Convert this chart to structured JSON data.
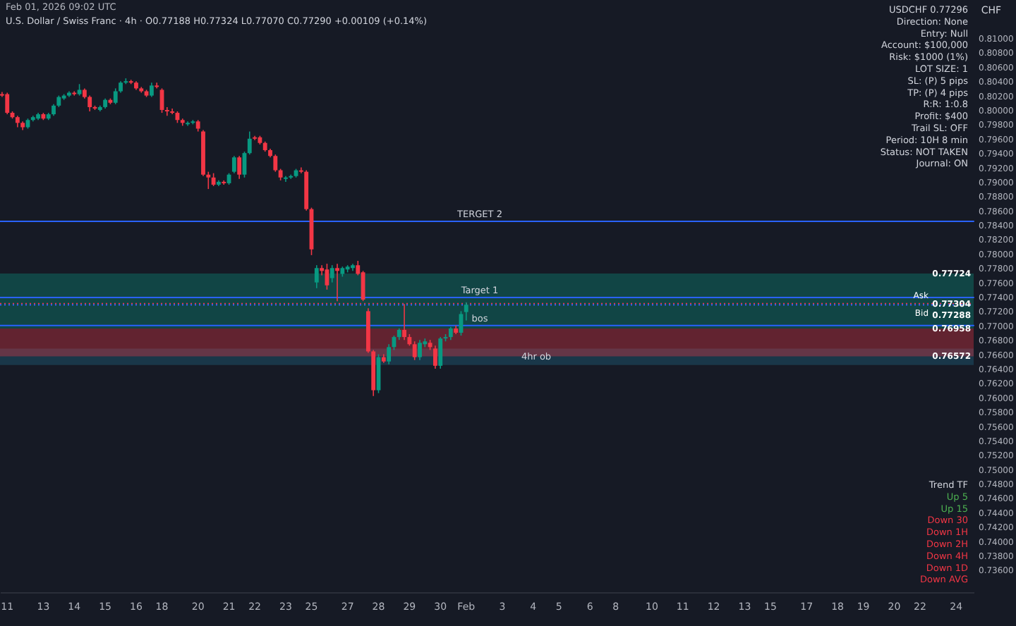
{
  "chart_data": {
    "type": "candlestick",
    "title": "U.S. Dollar / Swiss Franc · 4h · O0.77188 H0.77324 L0.77070 C0.77290 +0.00109 (+0.14%)",
    "ylabel": "CHF",
    "categories": [
      null,
      "11",
      null,
      null,
      null,
      null,
      null,
      null,
      "13",
      null,
      null,
      null,
      null,
      null,
      "14",
      null,
      null,
      null,
      null,
      null,
      "15",
      null,
      null,
      null,
      null,
      null,
      "16",
      null,
      null,
      null,
      null,
      "18",
      null,
      null,
      null,
      null,
      null,
      null,
      "20",
      null,
      null,
      null,
      null,
      null,
      "21",
      null,
      null,
      null,
      null,
      "22",
      null,
      null,
      null,
      null,
      null,
      "23",
      null,
      null,
      null,
      null,
      "25",
      null,
      null,
      null,
      null,
      null,
      null,
      "27",
      null,
      null,
      null,
      null,
      null,
      "28",
      null,
      null,
      null,
      null,
      null,
      "29",
      null,
      null,
      null,
      null,
      null,
      "30",
      null,
      null,
      null,
      null,
      "Feb",
      null,
      null,
      null,
      null,
      null,
      null,
      "3",
      null,
      null,
      null,
      null,
      null,
      "4",
      null,
      null,
      null,
      null,
      "5",
      null,
      null,
      null,
      null,
      null,
      "6",
      null,
      null,
      null,
      null,
      "8",
      null,
      null,
      null,
      null,
      null,
      null,
      "10",
      null,
      null,
      null,
      null,
      null,
      "11",
      null,
      null,
      null,
      null,
      null,
      "12",
      null,
      null,
      null,
      null,
      null,
      "13",
      null,
      null,
      null,
      null,
      "15",
      null,
      null,
      null,
      null,
      null,
      null,
      "17",
      null,
      null,
      null,
      null,
      null,
      "18",
      null,
      null,
      null,
      null,
      "19",
      null,
      null,
      null,
      null,
      null,
      "20",
      null,
      null,
      null,
      null,
      "22",
      null,
      null,
      null,
      null,
      null,
      null,
      "24",
      null,
      null,
      null
    ],
    "ohlc": [
      [
        0.8022,
        0.8025,
        0.8018,
        0.802
      ],
      [
        0.8022,
        0.8024,
        0.7994,
        0.7996
      ],
      [
        0.7996,
        0.7998,
        0.7988,
        0.799
      ],
      [
        0.799,
        0.7992,
        0.7976,
        0.7982
      ],
      [
        0.7982,
        0.7984,
        0.7972,
        0.7976
      ],
      [
        0.7976,
        0.7988,
        0.7974,
        0.7986
      ],
      [
        0.7986,
        0.7992,
        0.7984,
        0.799
      ],
      [
        0.7988,
        0.7996,
        0.7986,
        0.7994
      ],
      [
        0.7994,
        0.7996,
        0.7986,
        0.7988
      ],
      [
        0.7988,
        0.7996,
        0.7986,
        0.7994
      ],
      [
        0.7994,
        0.8008,
        0.7992,
        0.8006
      ],
      [
        0.8006,
        0.802,
        0.8004,
        0.8018
      ],
      [
        0.8016,
        0.8022,
        0.8014,
        0.802
      ],
      [
        0.802,
        0.8026,
        0.8018,
        0.8024
      ],
      [
        0.8024,
        0.8026,
        0.802,
        0.8022
      ],
      [
        0.8022,
        0.8036,
        0.802,
        0.8028
      ],
      [
        0.8028,
        0.803,
        0.8016,
        0.8018
      ],
      [
        0.8018,
        0.802,
        0.7998,
        0.8004
      ],
      [
        0.8004,
        0.8006,
        0.8,
        0.8002
      ],
      [
        0.8,
        0.8006,
        0.7998,
        0.8004
      ],
      [
        0.8004,
        0.8016,
        0.8002,
        0.8014
      ],
      [
        0.8014,
        0.8016,
        0.8008,
        0.801
      ],
      [
        0.801,
        0.803,
        0.8008,
        0.8026
      ],
      [
        0.8026,
        0.804,
        0.8024,
        0.8038
      ],
      [
        0.8038,
        0.8044,
        0.8036,
        0.804
      ],
      [
        0.804,
        0.8042,
        0.8036,
        0.8038
      ],
      [
        0.8038,
        0.804,
        0.8028,
        0.803
      ],
      [
        0.803,
        0.8032,
        0.8024,
        0.8026
      ],
      [
        0.8026,
        0.8028,
        0.8018,
        0.802
      ],
      [
        0.802,
        0.8038,
        0.8018,
        0.8034
      ],
      [
        0.8034,
        0.8038,
        0.803,
        0.8032
      ],
      [
        0.8028,
        0.803,
        0.7996,
        0.8
      ],
      [
        0.8,
        0.8004,
        0.7992,
        0.7998
      ],
      [
        0.7998,
        0.8002,
        0.7994,
        0.7996
      ],
      [
        0.7996,
        0.7998,
        0.7982,
        0.7986
      ],
      [
        0.7986,
        0.7988,
        0.7978,
        0.7982
      ],
      [
        0.798,
        0.7984,
        0.7978,
        0.7982
      ],
      [
        0.7982,
        0.7986,
        0.798,
        0.7984
      ],
      [
        0.7984,
        0.7986,
        0.797,
        0.7974
      ],
      [
        0.797,
        0.7972,
        0.7908,
        0.791
      ],
      [
        0.791,
        0.7914,
        0.789,
        0.7906
      ],
      [
        0.7906,
        0.7912,
        0.7894,
        0.7896
      ],
      [
        0.7896,
        0.7902,
        0.7894,
        0.79
      ],
      [
        0.79,
        0.7902,
        0.7896,
        0.7898
      ],
      [
        0.7898,
        0.7912,
        0.7896,
        0.791
      ],
      [
        0.7914,
        0.7936,
        0.7912,
        0.7934
      ],
      [
        0.7934,
        0.7936,
        0.7904,
        0.791
      ],
      [
        0.791,
        0.7942,
        0.7906,
        0.794
      ],
      [
        0.794,
        0.797,
        0.7938,
        0.796
      ],
      [
        0.7962,
        0.7964,
        0.7958,
        0.796
      ],
      [
        0.7962,
        0.7964,
        0.7952,
        0.7954
      ],
      [
        0.7954,
        0.7956,
        0.7942,
        0.7944
      ],
      [
        0.7944,
        0.7946,
        0.7934,
        0.7936
      ],
      [
        0.7936,
        0.7938,
        0.7914,
        0.7916
      ],
      [
        0.7916,
        0.7918,
        0.7902,
        0.7906
      ],
      [
        0.7904,
        0.7908,
        0.79,
        0.7906
      ],
      [
        0.7906,
        0.791,
        0.7904,
        0.7908
      ],
      [
        0.7908,
        0.7918,
        0.7906,
        0.7916
      ],
      [
        0.7916,
        0.792,
        0.7912,
        0.7914
      ],
      [
        0.7914,
        0.7916,
        0.786,
        0.7862
      ],
      [
        0.7862,
        0.7864,
        0.7798,
        0.7806
      ],
      [
        0.776,
        0.7784,
        0.7752,
        0.778
      ],
      [
        0.778,
        0.7784,
        0.777,
        0.7776
      ],
      [
        0.7778,
        0.7786,
        0.775,
        0.7756
      ],
      [
        0.7766,
        0.7784,
        0.776,
        0.778
      ],
      [
        0.778,
        0.7786,
        0.7734,
        0.7776
      ],
      [
        0.7772,
        0.7782,
        0.7768,
        0.778
      ],
      [
        0.7778,
        0.7784,
        0.7774,
        0.7782
      ],
      [
        0.778,
        0.7786,
        0.7776,
        0.7784
      ],
      [
        0.7784,
        0.779,
        0.777,
        0.7772
      ],
      [
        0.7774,
        0.7776,
        0.7734,
        0.7736
      ],
      [
        0.772,
        0.7724,
        0.7662,
        0.7664
      ],
      [
        0.7664,
        0.7666,
        0.7602,
        0.761
      ],
      [
        0.761,
        0.766,
        0.7606,
        0.7656
      ],
      [
        0.7656,
        0.766,
        0.7648,
        0.765
      ],
      [
        0.765,
        0.7674,
        0.7646,
        0.767
      ],
      [
        0.767,
        0.7686,
        0.7666,
        0.7684
      ],
      [
        0.7684,
        0.7696,
        0.768,
        0.7694
      ],
      [
        0.7694,
        0.773,
        0.768,
        0.7684
      ],
      [
        0.7684,
        0.7688,
        0.7672,
        0.7674
      ],
      [
        0.7674,
        0.7678,
        0.7652,
        0.7656
      ],
      [
        0.7656,
        0.768,
        0.7652,
        0.7676
      ],
      [
        0.7674,
        0.7682,
        0.767,
        0.7678
      ],
      [
        0.7676,
        0.768,
        0.7666,
        0.767
      ],
      [
        0.7668,
        0.7672,
        0.764,
        0.7644
      ],
      [
        0.7644,
        0.7684,
        0.764,
        0.7682
      ],
      [
        0.7682,
        0.7688,
        0.7678,
        0.7684
      ],
      [
        0.7684,
        0.7698,
        0.768,
        0.7696
      ],
      [
        0.7696,
        0.77,
        0.7688,
        0.769
      ],
      [
        0.769,
        0.772,
        0.7686,
        0.7716
      ],
      [
        0.77188,
        0.77324,
        0.7707,
        0.7729
      ],
      null,
      null,
      null,
      null,
      null,
      null,
      null,
      null,
      null,
      null,
      null,
      null,
      null,
      null,
      null,
      null,
      null,
      null,
      null,
      null,
      null,
      null,
      null,
      null,
      null,
      null,
      null,
      null,
      null,
      null,
      null,
      null,
      null,
      null,
      null,
      null,
      null,
      null,
      null,
      null,
      null,
      null,
      null,
      null,
      null,
      null,
      null,
      null,
      null,
      null,
      null,
      null,
      null,
      null,
      null,
      null,
      null,
      null,
      null,
      null,
      null,
      null,
      null,
      null,
      null,
      null,
      null,
      null,
      null,
      null,
      null,
      null,
      null,
      null,
      null,
      null,
      null,
      null,
      null,
      null,
      null,
      null,
      null,
      null,
      null,
      null,
      null,
      null,
      null,
      null,
      null,
      null,
      null,
      null,
      null,
      null,
      null,
      null
    ],
    "colors": [
      "#f23645",
      "#f23645",
      "#f23645",
      "#f23645",
      "#f23645",
      "#089981",
      "#089981",
      "#089981",
      "#f23645",
      "#089981",
      "#089981",
      "#089981",
      "#089981",
      "#089981",
      "#f23645",
      "#089981",
      "#f23645",
      "#f23645",
      "#f23645",
      "#089981",
      "#089981",
      "#f23645",
      "#089981",
      "#089981",
      "#089981",
      "#f23645",
      "#f23645",
      "#f23645",
      "#f23645",
      "#089981",
      "#f23645",
      "#f23645",
      "#f23645",
      "#f23645",
      "#f23645",
      "#f23645",
      "#089981",
      "#089981",
      "#f23645",
      "#f23645",
      "#f23645",
      "#f23645",
      "#089981",
      "#f23645",
      "#089981",
      "#089981",
      "#f23645",
      "#089981",
      "#089981",
      "#f23645",
      "#f23645",
      "#f23645",
      "#f23645",
      "#f23645",
      "#f23645",
      "#089981",
      "#089981",
      "#089981",
      "#f23645",
      "#f23645",
      "#f23645",
      "#089981",
      "#f23645",
      "#f23645",
      "#089981",
      "#f23645",
      "#089981",
      "#089981",
      "#089981",
      "#f23645",
      "#f23645",
      "#f23645",
      "#f23645",
      "#089981",
      "#f23645",
      "#089981",
      "#089981",
      "#089981",
      "#f23645",
      "#f23645",
      "#f23645",
      "#089981",
      "#089981",
      "#f23645",
      "#f23645",
      "#089981",
      "#089981",
      "#089981",
      "#f23645",
      "#089981",
      "#089981",
      null,
      null,
      null,
      null,
      null,
      null,
      null,
      null,
      null,
      null,
      null,
      null,
      null,
      null,
      null,
      null,
      null,
      null,
      null,
      null,
      null,
      null,
      null,
      null,
      null,
      null,
      null,
      null,
      null,
      null,
      null,
      null,
      null,
      null,
      null,
      null,
      null,
      null,
      null,
      null,
      null,
      null,
      null,
      null,
      null,
      null,
      null,
      null,
      null,
      null,
      null,
      null,
      null,
      null,
      null,
      null,
      null,
      null,
      null,
      null,
      null,
      null,
      null,
      null,
      null,
      null,
      null,
      null,
      null,
      null,
      null,
      null,
      null,
      null,
      null,
      null,
      null,
      null,
      null,
      null,
      null,
      null,
      null,
      null,
      null,
      null,
      null,
      null,
      null,
      null,
      null,
      null,
      null,
      null,
      null,
      null,
      null,
      null
    ],
    "ylim": [
      0.7329,
      0.8153
    ],
    "yticks": [
      {
        "value": 0.736,
        "label": "0.73600"
      },
      {
        "value": 0.738,
        "label": "0.73800"
      },
      {
        "value": 0.74,
        "label": "0.74000"
      },
      {
        "value": 0.742,
        "label": "0.74200"
      },
      {
        "value": 0.744,
        "label": "0.74400"
      },
      {
        "value": 0.746,
        "label": "0.74600"
      },
      {
        "value": 0.748,
        "label": "0.74800"
      },
      {
        "value": 0.75,
        "label": "0.75000"
      },
      {
        "value": 0.752,
        "label": "0.75200"
      },
      {
        "value": 0.754,
        "label": "0.75400"
      },
      {
        "value": 0.756,
        "label": "0.75600"
      },
      {
        "value": 0.758,
        "label": "0.75800"
      },
      {
        "value": 0.76,
        "label": "0.76000"
      },
      {
        "value": 0.762,
        "label": "0.76200"
      },
      {
        "value": 0.764,
        "label": "0.76400"
      },
      {
        "value": 0.766,
        "label": "0.76600"
      },
      {
        "value": 0.768,
        "label": "0.76800"
      },
      {
        "value": 0.77,
        "label": "0.77000"
      },
      {
        "value": 0.772,
        "label": "0.77200"
      },
      {
        "value": 0.774,
        "label": "0.77400"
      },
      {
        "value": 0.776,
        "label": "0.77600"
      },
      {
        "value": 0.778,
        "label": "0.77800"
      },
      {
        "value": 0.78,
        "label": "0.78000"
      },
      {
        "value": 0.782,
        "label": "0.78200"
      },
      {
        "value": 0.784,
        "label": "0.78400"
      },
      {
        "value": 0.786,
        "label": "0.78600"
      },
      {
        "value": 0.788,
        "label": "0.78800"
      },
      {
        "value": 0.79,
        "label": "0.79000"
      },
      {
        "value": 0.792,
        "label": "0.79200"
      },
      {
        "value": 0.794,
        "label": "0.79400"
      },
      {
        "value": 0.796,
        "label": "0.79600"
      },
      {
        "value": 0.798,
        "label": "0.79800"
      },
      {
        "value": 0.8,
        "label": "0.80000"
      },
      {
        "value": 0.802,
        "label": "0.80200"
      },
      {
        "value": 0.804,
        "label": "0.80400"
      },
      {
        "value": 0.806,
        "label": "0.80600"
      },
      {
        "value": 0.808,
        "label": "0.80800"
      },
      {
        "value": 0.81,
        "label": "0.81000"
      }
    ],
    "grid": false,
    "ref_lines": [
      {
        "axis": "y",
        "value": 0.7845,
        "label": "TERGET 2",
        "color": "#2962ff",
        "line_style": "solid"
      },
      {
        "axis": "y",
        "value": 0.7739,
        "label": "Target 1",
        "color": "#2962ff",
        "line_style": "solid"
      },
      {
        "axis": "y",
        "value": 0.77,
        "label": "bos",
        "color": "#2962ff",
        "line_style": "solid"
      },
      {
        "axis": "y",
        "value": 0.77304,
        "label": "Ask",
        "color": "#f23645",
        "line_style": "dotted"
      },
      {
        "axis": "y",
        "value": 0.77288,
        "label": "Bid",
        "color": "#2962ff",
        "line_style": "dotted"
      }
    ],
    "bands": [
      {
        "axis": "y",
        "from": 0.7645,
        "to": 0.7668,
        "label": "4hr ob",
        "color": "#1f6f8b"
      },
      {
        "axis": "y",
        "from": 0.76958,
        "to": 0.77724,
        "label": null,
        "color": "#089981"
      },
      {
        "axis": "y",
        "from": 0.76572,
        "to": 0.76958,
        "label": null,
        "color": "#f23645"
      }
    ],
    "annotations": [
      "Feb 01, 2026 09:02 UTC",
      "USDCHF  0.77296",
      "Direction:  None",
      "Entry:  Null",
      "Account:  $100,000",
      "Risk:  $1000 (1%)",
      "LOT SIZE:  1",
      "SL:  (P) 5 pips",
      "TP:  (P) 4 pips",
      "R:R:  1:0.8",
      "Profit:  $400",
      "Trail SL:  OFF",
      "Period:  10H 8 min",
      "Status:  NOT TAKEN",
      "Journal:  ON",
      "Trend  TF",
      "Up  5",
      "Up  15",
      "Down  30",
      "Down  1H",
      "Down  2H",
      "Down  4H",
      "Down  1D",
      "Down  AVG",
      {
        "text": "0.77724",
        "y": 0.77724
      },
      {
        "text": "0.77304",
        "y": 0.77304
      },
      {
        "text": "0.77288",
        "y": 0.77288
      },
      {
        "text": "0.76958",
        "y": 0.76958
      },
      {
        "text": "0.76572",
        "y": 0.76572
      }
    ]
  }
}
